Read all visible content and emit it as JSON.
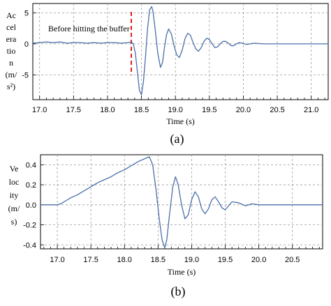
{
  "chart_data": [
    {
      "type": "line",
      "caption": "(a)",
      "xlabel": "Time (s)",
      "ylabel_lines": [
        "Ac",
        "cel",
        "era",
        "tio",
        "n",
        "(m/",
        "s²)"
      ],
      "xlim": [
        16.9,
        21.25
      ],
      "ylim": [
        -9,
        6.5
      ],
      "xticks": [
        17.0,
        17.5,
        18.0,
        18.5,
        19.0,
        19.5,
        20.0,
        20.5,
        21.0
      ],
      "xtick_labels": [
        "17.0",
        "17.5",
        "18.0",
        "18.5",
        "19.0",
        "19.5",
        "20.0",
        "20.5",
        "21.0"
      ],
      "yticks": [
        5,
        0,
        -5
      ],
      "ytick_labels": [
        "5",
        "0",
        "-5"
      ],
      "grid": true,
      "series": [
        {
          "color": "#4a6fa8",
          "x": [
            16.9,
            17.0,
            17.1,
            17.2,
            17.3,
            17.4,
            17.5,
            17.6,
            17.7,
            17.8,
            17.9,
            18.0,
            18.1,
            18.2,
            18.3,
            18.35,
            18.38,
            18.41,
            18.44,
            18.47,
            18.5,
            18.53,
            18.56,
            18.59,
            18.62,
            18.65,
            18.67,
            18.7,
            18.74,
            18.78,
            18.81,
            18.84,
            18.87,
            18.9,
            18.94,
            18.98,
            19.02,
            19.06,
            19.1,
            19.14,
            19.18,
            19.22,
            19.26,
            19.3,
            19.34,
            19.38,
            19.42,
            19.46,
            19.5,
            19.54,
            19.58,
            19.62,
            19.66,
            19.7,
            19.74,
            19.78,
            19.82,
            19.86,
            19.9,
            19.94,
            19.98,
            20.05,
            20.15,
            20.3,
            20.5,
            20.7,
            20.9,
            21.1,
            21.25
          ],
          "y": [
            0.1,
            0.2,
            0.3,
            0.2,
            0.3,
            0.1,
            0.2,
            0.2,
            0.1,
            0.2,
            0.1,
            0.2,
            0.2,
            0.1,
            0.2,
            0.3,
            0.0,
            -1.5,
            -4.5,
            -7.5,
            -8.2,
            -6.0,
            -2.0,
            2.5,
            5.5,
            6.0,
            5.2,
            2.5,
            -1.5,
            -3.8,
            -3.0,
            -0.5,
            1.5,
            2.4,
            1.6,
            -0.3,
            -1.8,
            -2.2,
            -1.0,
            0.8,
            1.7,
            1.4,
            0.2,
            -0.8,
            -1.2,
            -0.6,
            0.4,
            0.9,
            0.7,
            0.0,
            -0.6,
            -0.5,
            0.0,
            0.4,
            0.4,
            0.1,
            -0.3,
            -0.3,
            0.0,
            0.2,
            0.1,
            -0.1,
            0.1,
            0.0,
            0.0,
            0.0,
            0.0,
            0.0,
            0.0
          ]
        }
      ],
      "annotation": {
        "text": "Before hitting the buffer",
        "marker_x": 18.35,
        "marker_color": "#e02020"
      }
    },
    {
      "type": "line",
      "caption": "(b)",
      "xlabel": "Time (s)",
      "ylabel_lines": [
        "Ve",
        "loc",
        "ity",
        "(m/",
        "s)"
      ],
      "xlim": [
        16.75,
        20.95
      ],
      "ylim": [
        -0.44,
        0.5
      ],
      "xticks": [
        17.0,
        17.5,
        18.0,
        18.5,
        19.0,
        19.5,
        20.0,
        20.5
      ],
      "xtick_labels": [
        "17.0",
        "17.5",
        "18.0",
        "18.5",
        "19.0",
        "19.5",
        "20.0",
        "20.5"
      ],
      "yticks": [
        0.4,
        0.2,
        0.0,
        -0.2,
        -0.4
      ],
      "ytick_labels": [
        "0.4",
        "0.2",
        "0.0",
        "-0.2",
        "-0.4"
      ],
      "grid": true,
      "series": [
        {
          "color": "#4a6fa8",
          "x": [
            16.75,
            16.9,
            17.0,
            17.05,
            17.1,
            17.2,
            17.3,
            17.4,
            17.5,
            17.6,
            17.7,
            17.8,
            17.9,
            18.0,
            18.1,
            18.2,
            18.3,
            18.37,
            18.42,
            18.47,
            18.52,
            18.56,
            18.6,
            18.63,
            18.67,
            18.72,
            18.76,
            18.8,
            18.85,
            18.9,
            18.95,
            19.0,
            19.05,
            19.1,
            19.15,
            19.2,
            19.25,
            19.3,
            19.35,
            19.4,
            19.45,
            19.5,
            19.55,
            19.6,
            19.7,
            19.8,
            19.9,
            20.0,
            20.2,
            20.5,
            20.95
          ],
          "y": [
            0.0,
            0.0,
            0.0,
            0.01,
            0.03,
            0.07,
            0.1,
            0.14,
            0.18,
            0.22,
            0.25,
            0.28,
            0.32,
            0.35,
            0.39,
            0.43,
            0.46,
            0.48,
            0.4,
            0.15,
            -0.15,
            -0.35,
            -0.43,
            -0.35,
            -0.1,
            0.18,
            0.28,
            0.2,
            0.0,
            -0.14,
            -0.1,
            0.05,
            0.13,
            0.08,
            -0.04,
            -0.09,
            -0.04,
            0.05,
            0.08,
            0.03,
            -0.03,
            -0.05,
            -0.01,
            0.03,
            0.02,
            -0.01,
            0.01,
            0.0,
            0.0,
            0.0,
            0.0
          ]
        }
      ]
    }
  ]
}
